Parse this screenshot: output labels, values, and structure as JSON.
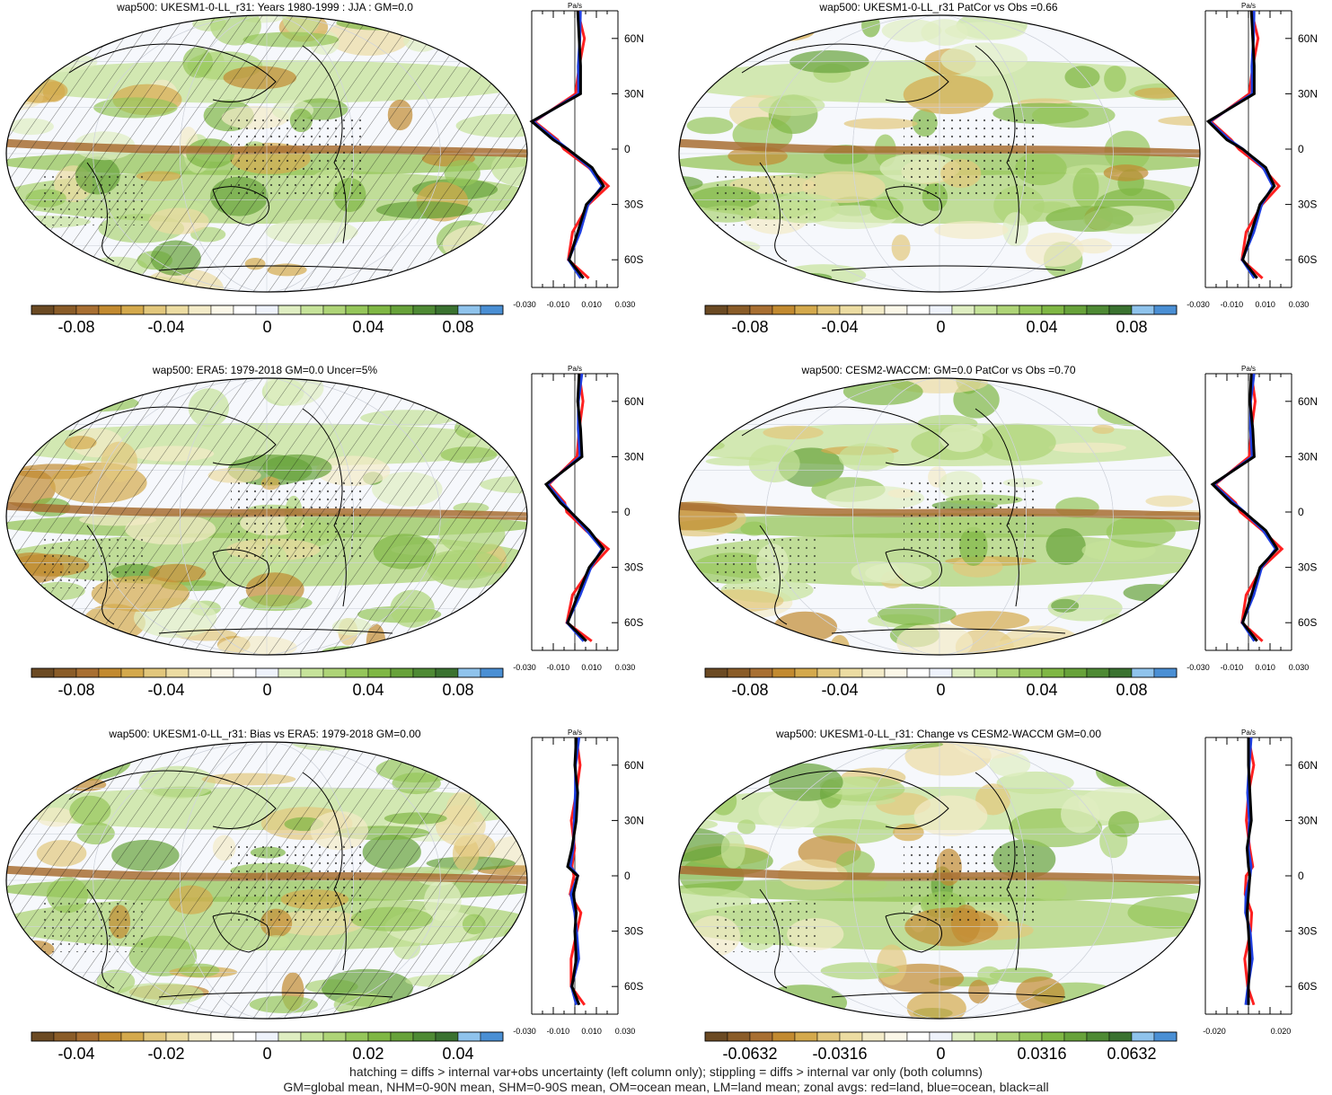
{
  "colors": {
    "palette": [
      "#6b4a23",
      "#8a5c28",
      "#a86f32",
      "#c28a30",
      "#d4a94c",
      "#e2c77c",
      "#ecdca2",
      "#f3ebc8",
      "#fbf7e8",
      "#ffffff",
      "#eef2fb",
      "#dfeec2",
      "#c6e39a",
      "#aed477",
      "#95c65a",
      "#7fb744",
      "#67a23a",
      "#4e8a34",
      "#3a7230",
      "#8fc3ec",
      "#4a8fd4"
    ],
    "zonal_land": "#ff2020",
    "zonal_ocean": "#1f3fe0",
    "zonal_all": "#000000"
  },
  "panels": [
    {
      "title": "wap500: UKESM1-0-LL_r31: Years 1980-1999 : JJA : GM=0.0",
      "cbar_ticks": [
        "-0.08",
        "-0.04",
        "0",
        "0.04",
        "0.08"
      ],
      "zonal_xticks": [
        "-0.030",
        "-0.010",
        "0.010",
        "0.030"
      ]
    },
    {
      "title": "wap500: UKESM1-0-LL_r31 PatCor vs Obs =0.66",
      "cbar_ticks": [
        "-0.08",
        "-0.04",
        "0",
        "0.04",
        "0.08"
      ],
      "zonal_xticks": [
        "-0.030",
        "-0.010",
        "0.010",
        "0.030"
      ]
    },
    {
      "title": "wap500: ERA5: 1979-2018 GM=0.0 Uncer=5%",
      "cbar_ticks": [
        "-0.08",
        "-0.04",
        "0",
        "0.04",
        "0.08"
      ],
      "zonal_xticks": [
        "-0.030",
        "-0.010",
        "0.010",
        "0.030"
      ]
    },
    {
      "title": "wap500: CESM2-WACCM: GM=0.0 PatCor vs Obs =0.70",
      "cbar_ticks": [
        "-0.08",
        "-0.04",
        "0",
        "0.04",
        "0.08"
      ],
      "zonal_xticks": [
        "-0.030",
        "-0.010",
        "0.010",
        "0.030"
      ]
    },
    {
      "title": "wap500: UKESM1-0-LL_r31: Bias vs ERA5: 1979-2018 GM=0.00",
      "cbar_ticks": [
        "-0.04",
        "-0.02",
        "0",
        "0.02",
        "0.04"
      ],
      "zonal_xticks": [
        "-0.030",
        "-0.010",
        "0.010",
        "0.030"
      ]
    },
    {
      "title": "wap500: UKESM1-0-LL_r31: Change vs CESM2-WACCM GM=0.00",
      "cbar_ticks": [
        "-0.0632",
        "-0.0316",
        "0",
        "0.0316",
        "0.0632"
      ],
      "zonal_xticks": [
        "-0.020",
        "0.020"
      ]
    }
  ],
  "zonal_common": {
    "unit": "Pa/s",
    "lat_labels": [
      "60N",
      "30N",
      "0",
      "30S",
      "60S"
    ]
  },
  "footer": {
    "line1": "hatching = diffs > internal var+obs uncertainty (left column only); stippling = diffs > internal var only (both columns)",
    "line2": "GM=global mean, NHM=0-90N mean, SHM=0-90S mean, OM=ocean mean, LM=land mean; zonal avgs: red=land, blue=ocean, black=all"
  },
  "chart_data": [
    {
      "type": "heatmap",
      "title": "wap500: UKESM1-0-LL_r31: Years 1980-1999 : JJA : GM=0.0",
      "colorbar_ticks": [
        -0.08,
        -0.04,
        0,
        0.04,
        0.08
      ],
      "zonal_profile": {
        "lat": [
          75,
          60,
          45,
          30,
          15,
          5,
          0,
          -10,
          -20,
          -30,
          -45,
          -60,
          -70
        ],
        "all": [
          0.002,
          0.003,
          0.004,
          0.004,
          -0.03,
          -0.015,
          -0.005,
          0.012,
          0.02,
          0.008,
          0.002,
          -0.004,
          0.006
        ]
      }
    },
    {
      "type": "heatmap",
      "title": "wap500: UKESM1-0-LL_r31 PatCor vs Obs =0.66",
      "colorbar_ticks": [
        -0.08,
        -0.04,
        0,
        0.04,
        0.08
      ],
      "zonal_profile": {
        "lat": [
          75,
          60,
          45,
          30,
          15,
          5,
          0,
          -10,
          -20,
          -30,
          -45,
          -60,
          -70
        ],
        "all": [
          0.002,
          0.003,
          0.004,
          0.004,
          -0.028,
          -0.015,
          -0.004,
          0.012,
          0.018,
          0.008,
          0.002,
          -0.004,
          0.006
        ]
      }
    },
    {
      "type": "heatmap",
      "title": "wap500: ERA5: 1979-2018 GM=0.0 Uncer=5%",
      "colorbar_ticks": [
        -0.08,
        -0.04,
        0,
        0.04,
        0.08
      ],
      "zonal_profile": {
        "lat": [
          75,
          60,
          45,
          30,
          15,
          5,
          0,
          -10,
          -20,
          -30,
          -45,
          -60,
          -70
        ],
        "all": [
          0.003,
          0.002,
          0.004,
          0.005,
          -0.02,
          -0.01,
          -0.003,
          0.01,
          0.02,
          0.01,
          0.002,
          -0.005,
          0.008
        ]
      }
    },
    {
      "type": "heatmap",
      "title": "wap500: CESM2-WACCM: GM=0.0 PatCor vs Obs =0.70",
      "colorbar_ticks": [
        -0.08,
        -0.04,
        0,
        0.04,
        0.08
      ],
      "zonal_profile": {
        "lat": [
          75,
          60,
          45,
          30,
          15,
          5,
          0,
          -10,
          -20,
          -30,
          -45,
          -60,
          -70
        ],
        "all": [
          0.002,
          0.001,
          0.003,
          0.004,
          -0.025,
          -0.012,
          -0.003,
          0.012,
          0.02,
          0.008,
          0.002,
          -0.004,
          0.006
        ]
      }
    },
    {
      "type": "heatmap",
      "title": "wap500: UKESM1-0-LL_r31: Bias vs ERA5: 1979-2018 GM=0.00",
      "colorbar_ticks": [
        -0.04,
        -0.02,
        0,
        0.02,
        0.04
      ],
      "zonal_profile": {
        "lat": [
          75,
          60,
          45,
          30,
          15,
          5,
          0,
          -10,
          -20,
          -30,
          -45,
          -60,
          -70
        ],
        "all": [
          0.001,
          0.0,
          0.002,
          0.001,
          -0.002,
          -0.005,
          0.002,
          -0.001,
          0.001,
          0.0,
          0.001,
          -0.002,
          0.003
        ]
      }
    },
    {
      "type": "heatmap",
      "title": "wap500: UKESM1-0-LL_r31: Change vs CESM2-WACCM GM=0.00",
      "colorbar_ticks": [
        -0.0632,
        -0.0316,
        0,
        0.0316,
        0.0632
      ],
      "zonal_profile": {
        "lat": [
          75,
          60,
          45,
          30,
          15,
          5,
          0,
          -10,
          -20,
          -30,
          -45,
          -60,
          -70
        ],
        "all": [
          0.0,
          0.0,
          0.001,
          0.002,
          -0.001,
          0.0,
          0.001,
          0.0,
          -0.001,
          0.0,
          0.001,
          0.0,
          0.0
        ]
      }
    }
  ]
}
